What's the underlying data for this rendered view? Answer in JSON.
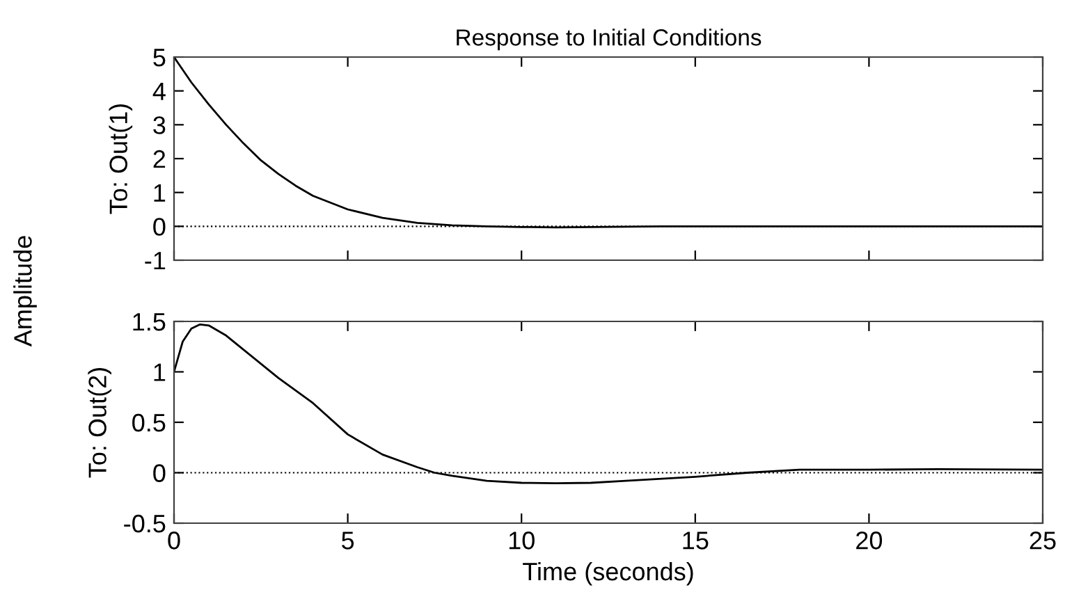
{
  "chart_data": [
    {
      "type": "line",
      "title": "Response to Initial Conditions",
      "ylabel": "To: Out(1)",
      "annotations": [
        "Amplitude"
      ],
      "x": [
        0,
        0.5,
        1,
        1.5,
        2,
        2.5,
        3,
        3.5,
        4,
        5,
        6,
        7,
        8,
        9,
        10,
        11,
        12,
        14,
        25
      ],
      "series": [
        {
          "color": "#000000",
          "values": [
            5,
            4.25,
            3.6,
            3.0,
            2.45,
            1.95,
            1.55,
            1.2,
            0.9,
            0.5,
            0.25,
            0.1,
            0.03,
            0.0,
            -0.02,
            -0.03,
            -0.02,
            0,
            0
          ]
        }
      ],
      "xlim": [
        0,
        25
      ],
      "xticks": [
        0,
        5,
        10,
        15,
        20,
        25
      ],
      "ylim": [
        -1,
        5
      ],
      "yticks": [
        -1,
        0,
        1,
        2,
        3,
        4,
        5
      ],
      "tick_labels": "y",
      "ref_lines": [
        {
          "axis": "y",
          "value": 0,
          "color": "#000000",
          "line_style": "dotted"
        }
      ]
    },
    {
      "type": "line",
      "xlabel": "Time (seconds)",
      "ylabel": "To: Out(2)",
      "x": [
        0,
        0.25,
        0.5,
        0.75,
        1,
        1.5,
        2,
        3,
        4,
        5,
        6,
        7,
        7.5,
        8,
        9,
        10,
        11,
        12,
        13,
        15,
        16.5,
        18,
        20,
        22,
        25
      ],
      "series": [
        {
          "color": "#000000",
          "values": [
            1.0,
            1.3,
            1.43,
            1.47,
            1.46,
            1.36,
            1.22,
            0.94,
            0.69,
            0.38,
            0.18,
            0.055,
            0,
            -0.03,
            -0.08,
            -0.1,
            -0.105,
            -0.1,
            -0.08,
            -0.04,
            0,
            0.03,
            0.03,
            0.035,
            0.03
          ]
        }
      ],
      "xlim": [
        0,
        25
      ],
      "xticks": [
        0,
        5,
        10,
        15,
        20,
        25
      ],
      "ylim": [
        -0.5,
        1.5
      ],
      "yticks": [
        -0.5,
        0,
        0.5,
        1,
        1.5
      ],
      "ref_lines": [
        {
          "axis": "y",
          "value": 0,
          "color": "#000000",
          "line_style": "dotted"
        }
      ]
    }
  ]
}
